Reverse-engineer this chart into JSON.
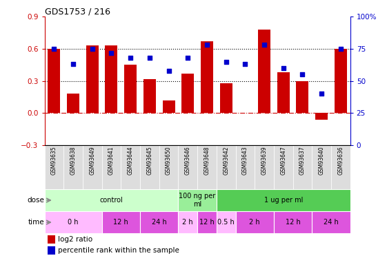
{
  "title": "GDS1753 / 216",
  "samples": [
    "GSM93635",
    "GSM93638",
    "GSM93649",
    "GSM93641",
    "GSM93644",
    "GSM93645",
    "GSM93650",
    "GSM93646",
    "GSM93648",
    "GSM93642",
    "GSM93643",
    "GSM93639",
    "GSM93647",
    "GSM93637",
    "GSM93640",
    "GSM93636"
  ],
  "log2_ratio": [
    0.6,
    0.18,
    0.63,
    0.63,
    0.45,
    0.32,
    0.12,
    0.37,
    0.67,
    0.28,
    0.0,
    0.78,
    0.38,
    0.3,
    -0.06,
    0.6
  ],
  "percentile": [
    75,
    63,
    75,
    72,
    68,
    68,
    58,
    68,
    78,
    65,
    63,
    78,
    60,
    55,
    40,
    75
  ],
  "bar_color": "#cc0000",
  "dot_color": "#0000cc",
  "ylim_left": [
    -0.3,
    0.9
  ],
  "ylim_right": [
    0,
    100
  ],
  "yticks_left": [
    -0.3,
    0.0,
    0.3,
    0.6,
    0.9
  ],
  "yticks_right": [
    0,
    25,
    50,
    75,
    100
  ],
  "dose_groups": [
    {
      "label": "control",
      "start": 0,
      "end": 6,
      "color": "#ccffcc"
    },
    {
      "label": "100 ng per\nml",
      "start": 7,
      "end": 8,
      "color": "#99ee99"
    },
    {
      "label": "1 ug per ml",
      "start": 9,
      "end": 15,
      "color": "#55cc55"
    }
  ],
  "time_groups": [
    {
      "label": "0 h",
      "start": 0,
      "end": 2,
      "color": "#ffbbff"
    },
    {
      "label": "12 h",
      "start": 3,
      "end": 4,
      "color": "#dd55dd"
    },
    {
      "label": "24 h",
      "start": 5,
      "end": 6,
      "color": "#dd55dd"
    },
    {
      "label": "2 h",
      "start": 7,
      "end": 7,
      "color": "#ffbbff"
    },
    {
      "label": "12 h",
      "start": 8,
      "end": 8,
      "color": "#dd55dd"
    },
    {
      "label": "0.5 h",
      "start": 9,
      "end": 9,
      "color": "#ffbbff"
    },
    {
      "label": "2 h",
      "start": 10,
      "end": 11,
      "color": "#dd55dd"
    },
    {
      "label": "12 h",
      "start": 12,
      "end": 13,
      "color": "#dd55dd"
    },
    {
      "label": "24 h",
      "start": 14,
      "end": 15,
      "color": "#dd55dd"
    }
  ]
}
